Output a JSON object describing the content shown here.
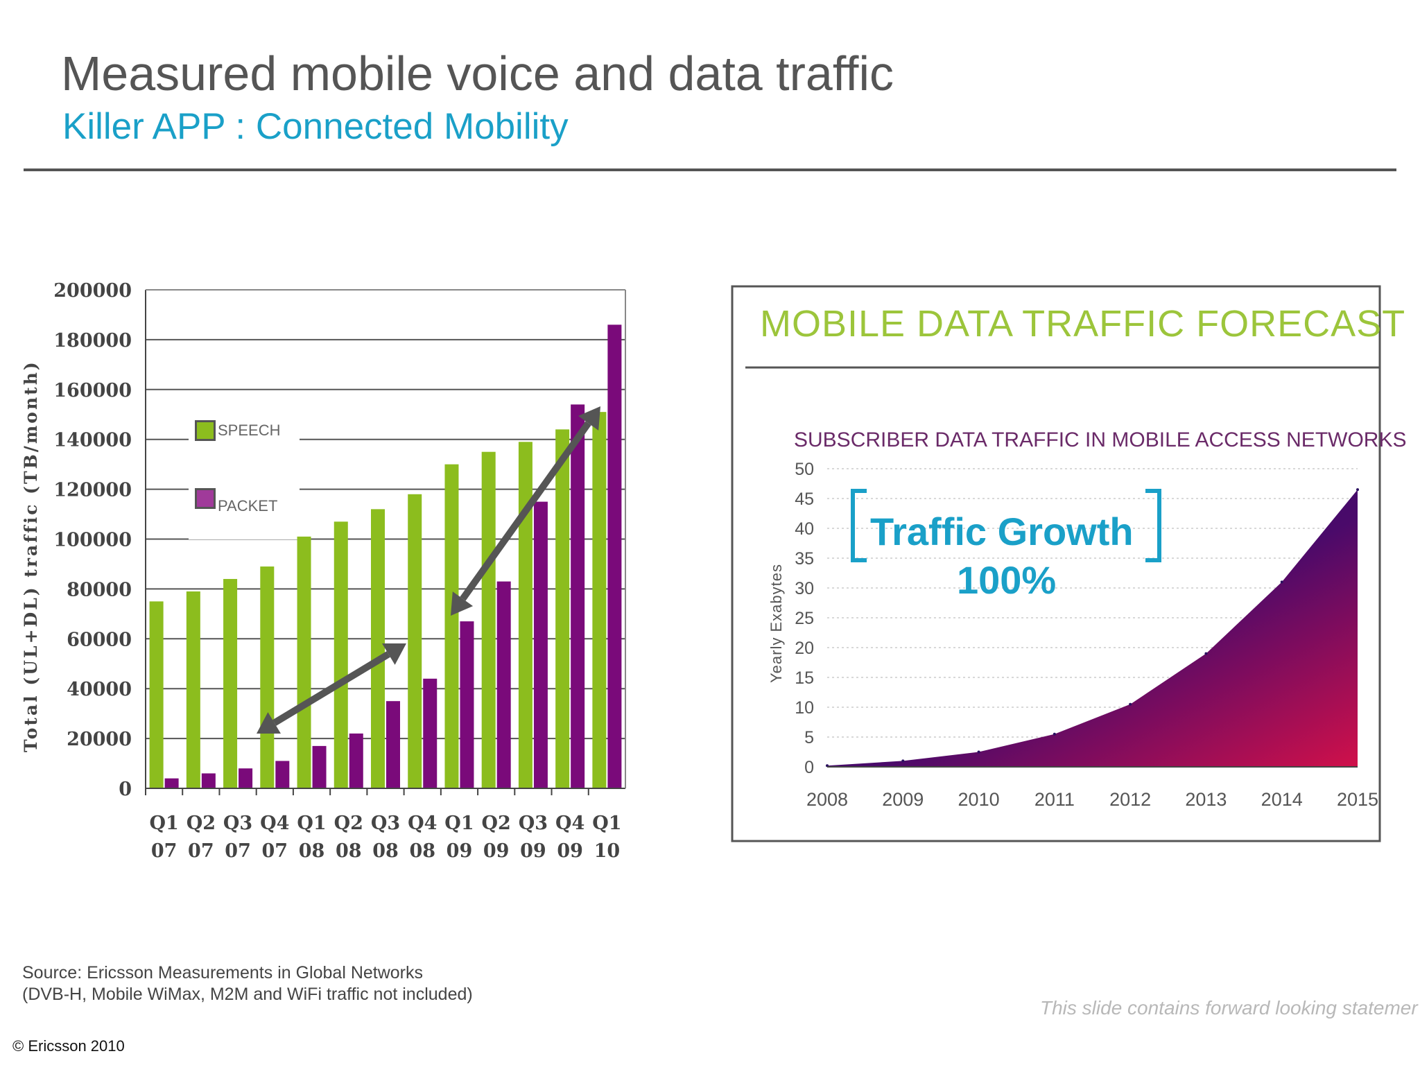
{
  "slide": {
    "title": "Measured mobile voice and data traffic",
    "subtitle": "Killer APP : Connected Mobility",
    "source_line1": "Source: Ericsson Measurements in Global Networks",
    "source_line2": "(DVB-H, Mobile WiMax, M2M and WiFi traffic not included)",
    "forward_looking": "This slide contains forward looking statemer",
    "copyright": "© Ericsson 2010"
  },
  "colors": {
    "speech": "#8cbd1e",
    "packet": "#7a0a7a",
    "accent": "#1aa0c8",
    "forecast_title": "#9cc53b"
  },
  "chart_data": [
    {
      "type": "bar",
      "ylabel": "Total (UL+DL) traffic (TB/month)",
      "ylim": [
        0,
        200000
      ],
      "yticks": [
        "200000",
        "180000",
        "160000",
        "140000",
        "120000",
        "100000",
        "80000",
        "60000",
        "40000",
        "20000",
        "0"
      ],
      "categories": [
        [
          "Q1",
          "07"
        ],
        [
          "Q2",
          "07"
        ],
        [
          "Q3",
          "07"
        ],
        [
          "Q4",
          "07"
        ],
        [
          "Q1",
          "08"
        ],
        [
          "Q2",
          "08"
        ],
        [
          "Q3",
          "08"
        ],
        [
          "Q4",
          "08"
        ],
        [
          "Q1",
          "09"
        ],
        [
          "Q2",
          "09"
        ],
        [
          "Q3",
          "09"
        ],
        [
          "Q4",
          "09"
        ],
        [
          "Q1",
          "10"
        ]
      ],
      "series": [
        {
          "name": "SPEECH",
          "values": [
            75000,
            79000,
            84000,
            89000,
            101000,
            107000,
            112000,
            118000,
            130000,
            135000,
            139000,
            144000,
            151000
          ]
        },
        {
          "name": "PACKET",
          "values": [
            4000,
            6000,
            8000,
            11000,
            17000,
            22000,
            35000,
            44000,
            67000,
            83000,
            115000,
            154000,
            186000
          ]
        }
      ],
      "grid": true,
      "legend_position": "upper-left"
    },
    {
      "type": "area",
      "title": "MOBILE DATA TRAFFIC FORECAST",
      "subtitle": "SUBSCRIBER DATA TRAFFIC IN MOBILE ACCESS NETWORKS",
      "ylabel": "Yearly Exabytes",
      "ylim": [
        0,
        50
      ],
      "yticks": [
        "50",
        "45",
        "40",
        "35",
        "30",
        "25",
        "20",
        "15",
        "10",
        "5",
        "0"
      ],
      "x": [
        "2008",
        "2009",
        "2010",
        "2011",
        "2012",
        "2013",
        "2014",
        "2015"
      ],
      "values": [
        0.2,
        1,
        2.5,
        5.5,
        10.5,
        19,
        31,
        46.5
      ],
      "annotation_label": "Traffic Growth",
      "annotation_value": "100%",
      "grid": true
    }
  ]
}
